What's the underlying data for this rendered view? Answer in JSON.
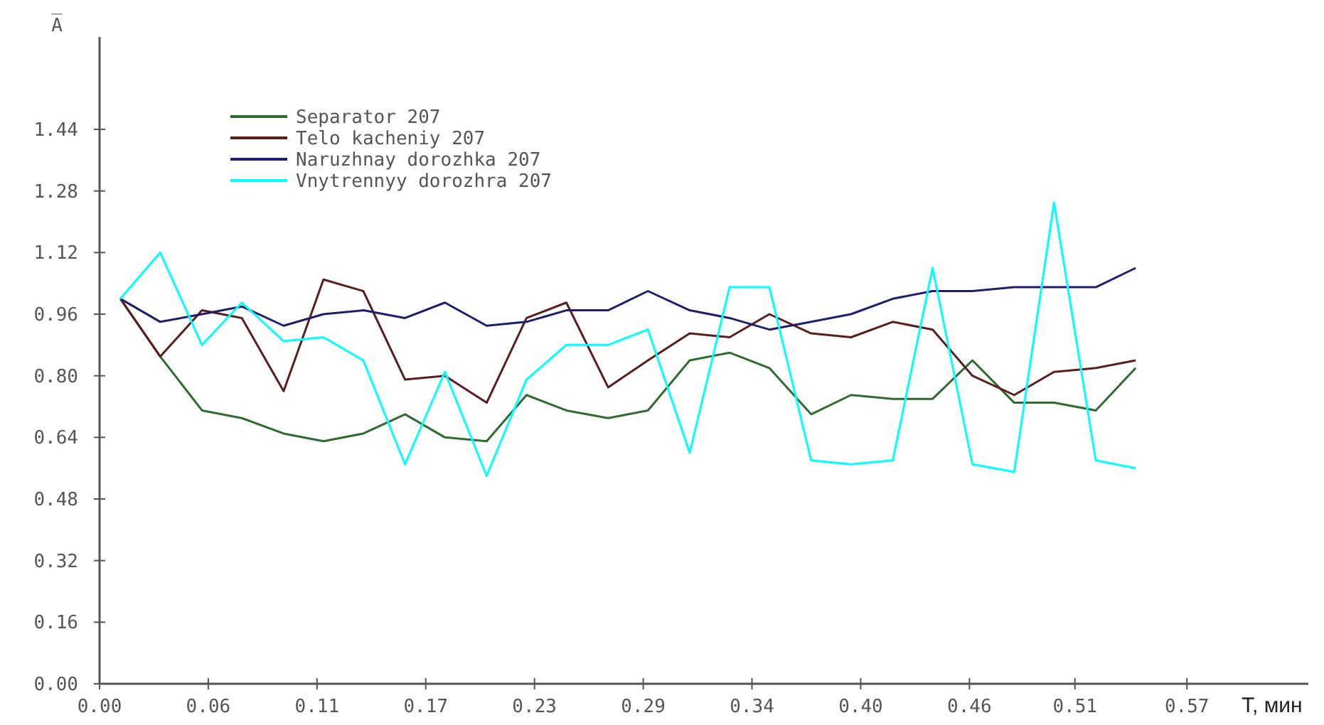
{
  "chart_data": {
    "type": "line",
    "ylabel": "A̅",
    "xlabel": "T, мин",
    "x": [
      0.011,
      0.032,
      0.054,
      0.075,
      0.097,
      0.118,
      0.139,
      0.161,
      0.182,
      0.204,
      0.225,
      0.246,
      0.268,
      0.289,
      0.311,
      0.332,
      0.353,
      0.375,
      0.396,
      0.418,
      0.439,
      0.46,
      0.482,
      0.503,
      0.525,
      0.546
    ],
    "series": [
      {
        "name": "Separator 207",
        "color": "#2f6b2f",
        "values": [
          1.0,
          0.85,
          0.71,
          0.69,
          0.65,
          0.63,
          0.65,
          0.7,
          0.64,
          0.63,
          0.75,
          0.71,
          0.69,
          0.71,
          0.84,
          0.86,
          0.82,
          0.7,
          0.75,
          0.74,
          0.74,
          0.84,
          0.73,
          0.73,
          0.71,
          0.82
        ]
      },
      {
        "name": "Telo kacheniy 207",
        "color": "#5a1e1e",
        "values": [
          1.0,
          0.85,
          0.97,
          0.95,
          0.76,
          1.05,
          1.02,
          0.79,
          0.8,
          0.73,
          0.95,
          0.99,
          0.77,
          0.84,
          0.91,
          0.9,
          0.96,
          0.91,
          0.9,
          0.94,
          0.92,
          0.8,
          0.75,
          0.81,
          0.82,
          0.84
        ]
      },
      {
        "name": "Naruzhnay dorozhka 207",
        "color": "#1e1e6b",
        "values": [
          1.0,
          0.94,
          0.96,
          0.98,
          0.93,
          0.96,
          0.97,
          0.95,
          0.99,
          0.93,
          0.94,
          0.97,
          0.97,
          1.02,
          0.97,
          0.95,
          0.92,
          0.94,
          0.96,
          1.0,
          1.02,
          1.02,
          1.03,
          1.03,
          1.03,
          1.08
        ]
      },
      {
        "name": "Vnytrennyy dorozhra 207",
        "color": "#00ffff",
        "values": [
          1.0,
          1.12,
          0.88,
          0.99,
          0.89,
          0.9,
          0.84,
          0.57,
          0.81,
          0.54,
          0.79,
          0.88,
          0.88,
          0.92,
          0.6,
          1.03,
          1.03,
          0.58,
          0.57,
          0.58,
          1.08,
          0.57,
          0.55,
          1.25,
          0.58,
          0.56
        ]
      }
    ],
    "xlim": [
      0,
      0.637
    ],
    "ylim": [
      0,
      1.68
    ],
    "xticks": [
      {
        "value": 0,
        "label": "0.00"
      },
      {
        "value": 0.0573,
        "label": "0.06"
      },
      {
        "value": 0.1146,
        "label": "0.11"
      },
      {
        "value": 0.1719,
        "label": "0.17"
      },
      {
        "value": 0.2292,
        "label": "0.23"
      },
      {
        "value": 0.2865,
        "label": "0.29"
      },
      {
        "value": 0.3438,
        "label": "0.34"
      },
      {
        "value": 0.4011,
        "label": "0.40"
      },
      {
        "value": 0.4584,
        "label": "0.46"
      },
      {
        "value": 0.514,
        "label": "0.51"
      },
      {
        "value": 0.573,
        "label": "0.57"
      }
    ],
    "yticks": [
      {
        "value": 0,
        "label": "0.00"
      },
      {
        "value": 0.16,
        "label": "0.16"
      },
      {
        "value": 0.32,
        "label": "0.32"
      },
      {
        "value": 0.48,
        "label": "0.48"
      },
      {
        "value": 0.64,
        "label": "0.64"
      },
      {
        "value": 0.8,
        "label": "0.80"
      },
      {
        "value": 0.96,
        "label": "0.96"
      },
      {
        "value": 1.12,
        "label": "1.12"
      },
      {
        "value": 1.28,
        "label": "1.28"
      },
      {
        "value": 1.44,
        "label": "1.44"
      }
    ],
    "legend": "top left",
    "grid": false,
    "marker": "none",
    "line_style": "solid"
  }
}
